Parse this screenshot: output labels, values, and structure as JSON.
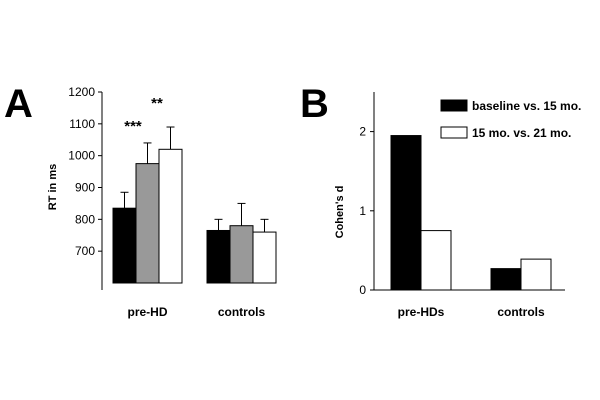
{
  "chart_data": [
    {
      "panel": "A",
      "type": "bar",
      "ylabel": "RT in ms",
      "ylim": [
        600,
        1200
      ],
      "yticks": [
        700,
        800,
        900,
        1000,
        1100,
        1200
      ],
      "categories": [
        "pre-HD",
        "controls"
      ],
      "series_colors": [
        "#000000",
        "#999999",
        "#ffffff"
      ],
      "series": [
        {
          "values": [
            835,
            765
          ],
          "errors": [
            50,
            35
          ]
        },
        {
          "values": [
            975,
            780
          ],
          "errors": [
            65,
            70
          ]
        },
        {
          "values": [
            1020,
            760
          ],
          "errors": [
            70,
            40
          ]
        }
      ],
      "annotations": [
        "***",
        "**"
      ],
      "grid": false
    },
    {
      "panel": "B",
      "type": "bar",
      "ylabel": "Cohen's d",
      "ylim": [
        0,
        2.5
      ],
      "yticks": [
        0,
        1,
        2
      ],
      "categories": [
        "pre-HDs",
        "controls"
      ],
      "series": [
        {
          "name": "baseline vs. 15 mo.",
          "color": "#000000",
          "values": [
            1.95,
            0.27
          ]
        },
        {
          "name": "15 mo. vs. 21 mo.",
          "color": "#ffffff",
          "values": [
            0.75,
            0.39
          ]
        }
      ],
      "legend_position": "top-right",
      "grid": false
    }
  ]
}
